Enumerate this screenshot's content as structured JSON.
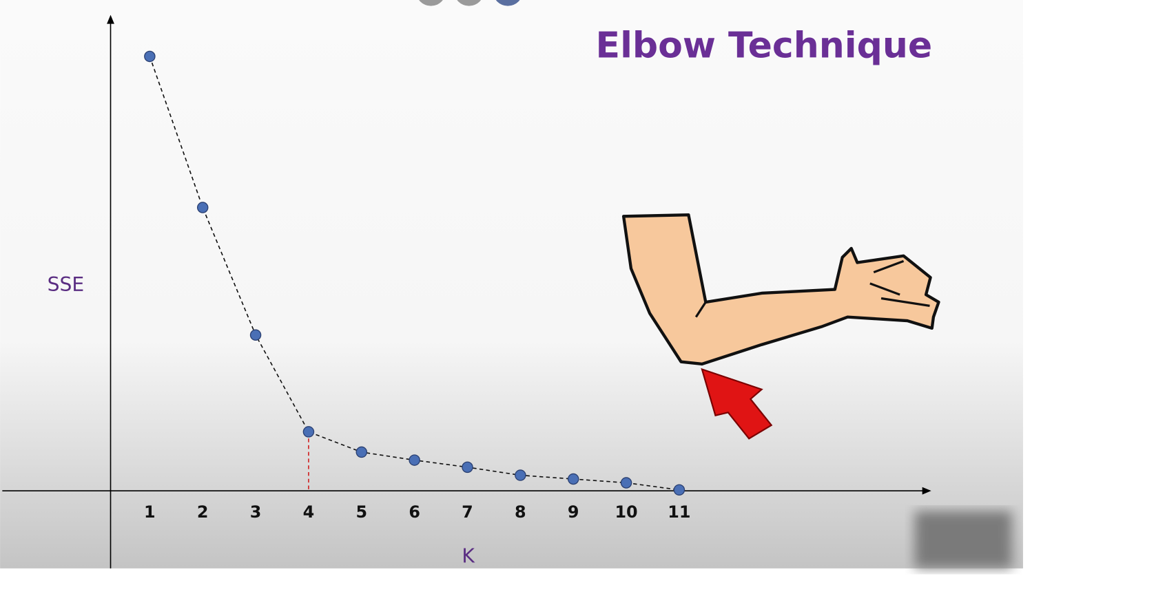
{
  "chart_data": {
    "type": "line",
    "title": "Elbow Technique",
    "y_label": "SSE",
    "x_label": "K",
    "categories": [
      "1",
      "2",
      "3",
      "4",
      "5",
      "6",
      "7",
      "8",
      "9",
      "10",
      "11"
    ],
    "series": [
      {
        "name": "SSE",
        "color": "#4a6fb5",
        "values": [
          92,
          60,
          33,
          12.5,
          8.2,
          6.5,
          5,
          3.3,
          2.5,
          1.7,
          0.2
        ]
      }
    ],
    "ylim": [
      0,
      100
    ]
  }
}
